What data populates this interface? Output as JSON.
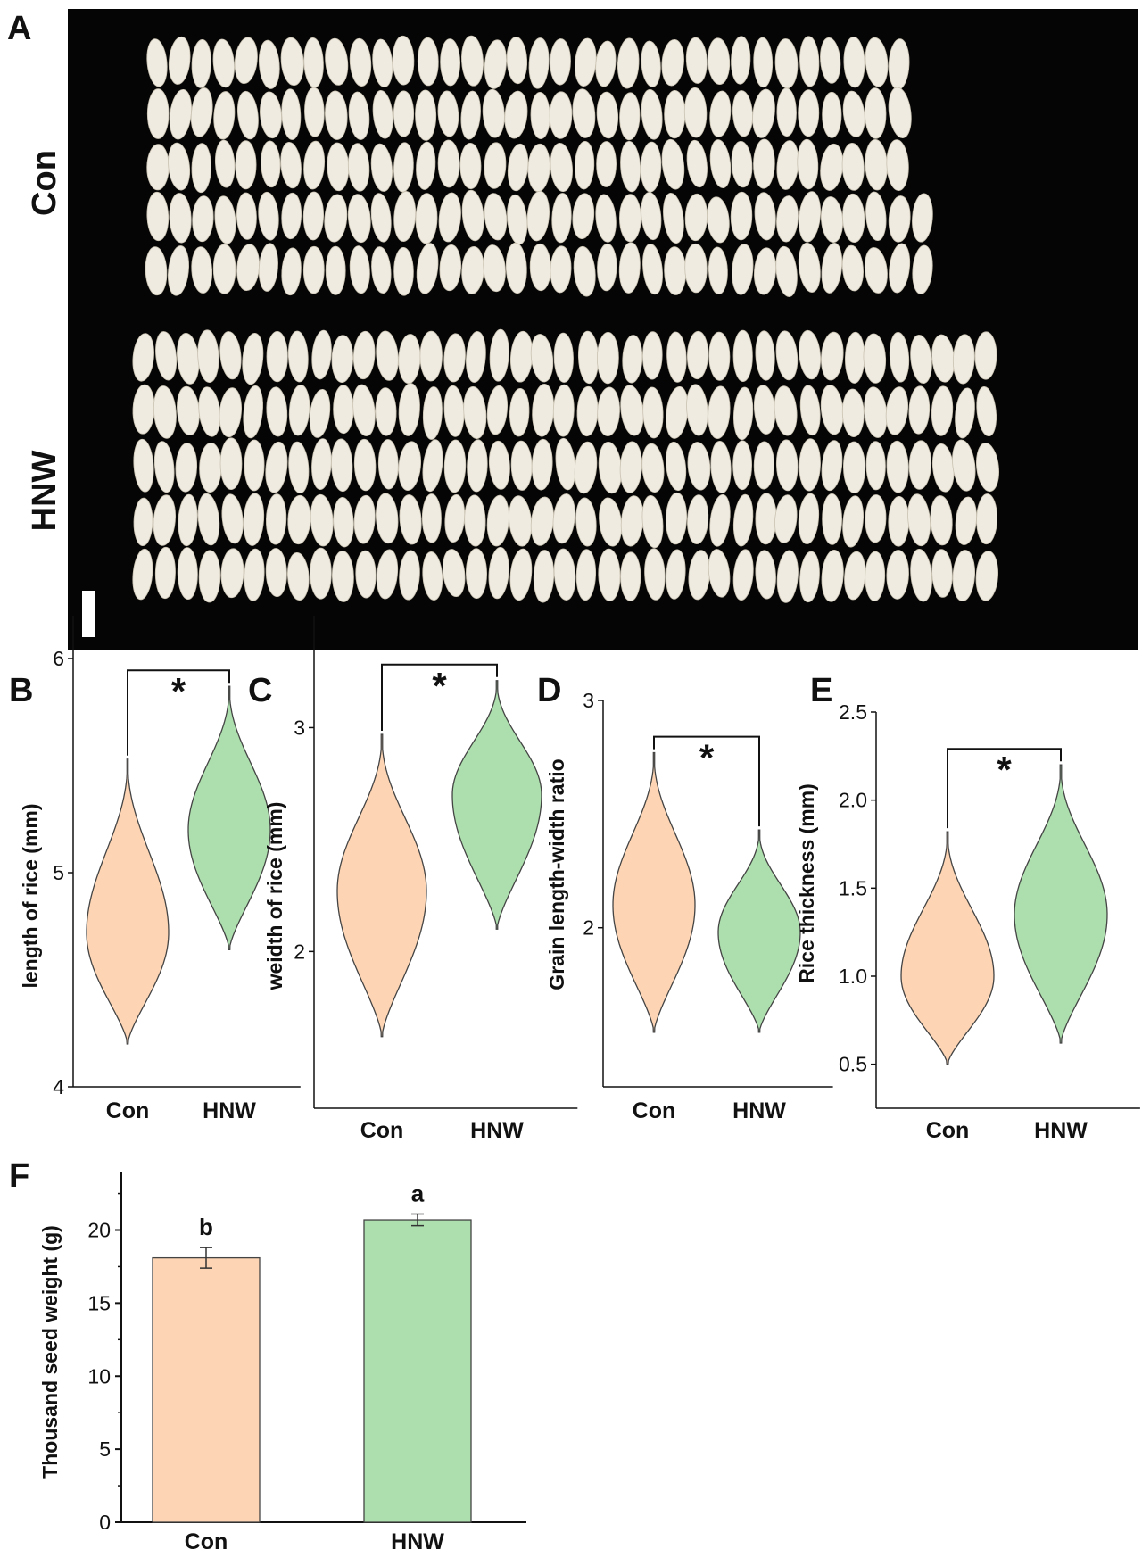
{
  "colors": {
    "con": "#fdd5b4",
    "hnw": "#acdfad",
    "photo_bg": "#050505",
    "grain": "#efebe0",
    "outline": "#444444"
  },
  "panel_a": {
    "letter": "A",
    "group_labels": [
      "Con",
      "HNW"
    ]
  },
  "chart_data": [
    {
      "id": "B",
      "type": "violin",
      "letter": "B",
      "ylabel": "length of rice (mm)",
      "categories": [
        "Con",
        "HNW"
      ],
      "ylim": [
        4,
        6.2
      ],
      "yticks": [
        4,
        5,
        6
      ],
      "series": [
        {
          "name": "Con",
          "min": 4.2,
          "max": 5.53,
          "median": 4.72
        },
        {
          "name": "HNW",
          "min": 4.64,
          "max": 5.87,
          "median": 5.2
        }
      ],
      "annotation": "*"
    },
    {
      "id": "C",
      "type": "violin",
      "letter": "C",
      "ylabel": "weidth of rice (mm)",
      "categories": [
        "Con",
        "HNW"
      ],
      "ylim": [
        1.3,
        3.5
      ],
      "yticks": [
        2,
        3
      ],
      "series": [
        {
          "name": "Con",
          "min": 1.62,
          "max": 2.97,
          "median": 2.27
        },
        {
          "name": "HNW",
          "min": 2.1,
          "max": 3.21,
          "median": 2.7
        }
      ],
      "annotation": "*"
    },
    {
      "id": "D",
      "type": "violin",
      "letter": "D",
      "ylabel": "Grain length-width ratio",
      "categories": [
        "Con",
        "HNW"
      ],
      "ylim": [
        1.3,
        3
      ],
      "yticks": [
        2,
        3
      ],
      "series": [
        {
          "name": "Con",
          "min": 1.54,
          "max": 2.77,
          "median": 2.1
        },
        {
          "name": "HNW",
          "min": 1.54,
          "max": 2.43,
          "median": 1.98
        }
      ],
      "annotation": "*"
    },
    {
      "id": "E",
      "type": "violin",
      "letter": "E",
      "ylabel": "Rice thickness (mm)",
      "categories": [
        "Con",
        "HNW"
      ],
      "ylim": [
        0.25,
        2.5
      ],
      "yticks": [
        0.5,
        1.0,
        1.5,
        2.0,
        2.5
      ],
      "series": [
        {
          "name": "Con",
          "min": 0.5,
          "max": 1.82,
          "median": 1.0
        },
        {
          "name": "HNW",
          "min": 0.62,
          "max": 2.2,
          "median": 1.35
        }
      ],
      "annotation": "*"
    },
    {
      "id": "F",
      "type": "bar",
      "letter": "F",
      "ylabel": "Thousand seed weight (g)",
      "categories": [
        "Con",
        "HNW"
      ],
      "values": [
        18.1,
        20.7
      ],
      "errors": [
        0.7,
        0.4
      ],
      "letters": [
        "b",
        "a"
      ],
      "ylim": [
        0,
        24
      ],
      "yticks": [
        0,
        5,
        10,
        15,
        20
      ]
    }
  ]
}
